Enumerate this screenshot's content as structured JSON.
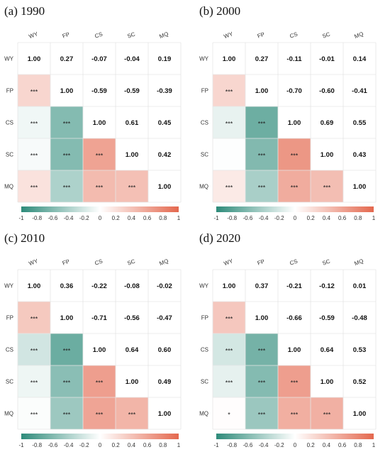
{
  "variables": [
    "WY",
    "FP",
    "CS",
    "SC",
    "MQ"
  ],
  "colorbar": {
    "ticks": [
      "-1",
      "-0.8",
      "-0.6",
      "-0.4",
      "-0.2",
      "0",
      "0.2",
      "0.4",
      "0.6",
      "0.8",
      "1"
    ],
    "range": [
      -1,
      1
    ],
    "negative_color": "#2e8b7a",
    "zero_color": "#ffffff",
    "positive_color": "#e4684e"
  },
  "chart_data": [
    {
      "type": "heatmap",
      "title": "(a) 1990",
      "labels": [
        "WY",
        "FP",
        "CS",
        "SC",
        "MQ"
      ],
      "upper": [
        [
          null,
          0.27,
          -0.07,
          -0.04,
          0.19
        ],
        [
          null,
          null,
          -0.59,
          -0.59,
          -0.39
        ],
        [
          null,
          null,
          null,
          0.61,
          0.45
        ],
        [
          null,
          null,
          null,
          null,
          0.42
        ],
        [
          null,
          null,
          null,
          null,
          null
        ]
      ],
      "lower_significance": [
        [
          null,
          null,
          null,
          null,
          null
        ],
        [
          "***",
          null,
          null,
          null,
          null
        ],
        [
          "***",
          "***",
          null,
          null,
          null
        ],
        [
          "***",
          "***",
          "***",
          null,
          null
        ],
        [
          "***",
          "***",
          "***",
          "***",
          null
        ]
      ]
    },
    {
      "type": "heatmap",
      "title": "(b) 2000",
      "labels": [
        "WY",
        "FP",
        "CS",
        "SC",
        "MQ"
      ],
      "upper": [
        [
          null,
          0.27,
          -0.11,
          -0.01,
          0.14
        ],
        [
          null,
          null,
          -0.7,
          -0.6,
          -0.41
        ],
        [
          null,
          null,
          null,
          0.69,
          0.55
        ],
        [
          null,
          null,
          null,
          null,
          0.43
        ],
        [
          null,
          null,
          null,
          null,
          null
        ]
      ],
      "lower_significance": [
        [
          null,
          null,
          null,
          null,
          null
        ],
        [
          "***",
          null,
          null,
          null,
          null
        ],
        [
          "***",
          "***",
          null,
          null,
          null
        ],
        [
          "",
          "***",
          "***",
          null,
          null
        ],
        [
          "***",
          "***",
          "***",
          "***",
          null
        ]
      ]
    },
    {
      "type": "heatmap",
      "title": "(c) 2010",
      "labels": [
        "WY",
        "FP",
        "CS",
        "SC",
        "MQ"
      ],
      "upper": [
        [
          null,
          0.36,
          -0.22,
          -0.08,
          -0.02
        ],
        [
          null,
          null,
          -0.71,
          -0.56,
          -0.47
        ],
        [
          null,
          null,
          null,
          0.64,
          0.6
        ],
        [
          null,
          null,
          null,
          null,
          0.49
        ],
        [
          null,
          null,
          null,
          null,
          null
        ]
      ],
      "lower_significance": [
        [
          null,
          null,
          null,
          null,
          null
        ],
        [
          "***",
          null,
          null,
          null,
          null
        ],
        [
          "***",
          "***",
          null,
          null,
          null
        ],
        [
          "***",
          "***",
          "***",
          null,
          null
        ],
        [
          "***",
          "***",
          "***",
          "***",
          null
        ]
      ]
    },
    {
      "type": "heatmap",
      "title": "(d) 2020",
      "labels": [
        "WY",
        "FP",
        "CS",
        "SC",
        "MQ"
      ],
      "upper": [
        [
          null,
          0.37,
          -0.21,
          -0.12,
          0.01
        ],
        [
          null,
          null,
          -0.66,
          -0.59,
          -0.48
        ],
        [
          null,
          null,
          null,
          0.64,
          0.53
        ],
        [
          null,
          null,
          null,
          null,
          0.52
        ],
        [
          null,
          null,
          null,
          null,
          null
        ]
      ],
      "lower_significance": [
        [
          null,
          null,
          null,
          null,
          null
        ],
        [
          "***",
          null,
          null,
          null,
          null
        ],
        [
          "***",
          "***",
          null,
          null,
          null
        ],
        [
          "***",
          "***",
          "***",
          null,
          null
        ],
        [
          "*",
          "***",
          "***",
          "***",
          null
        ]
      ]
    }
  ]
}
